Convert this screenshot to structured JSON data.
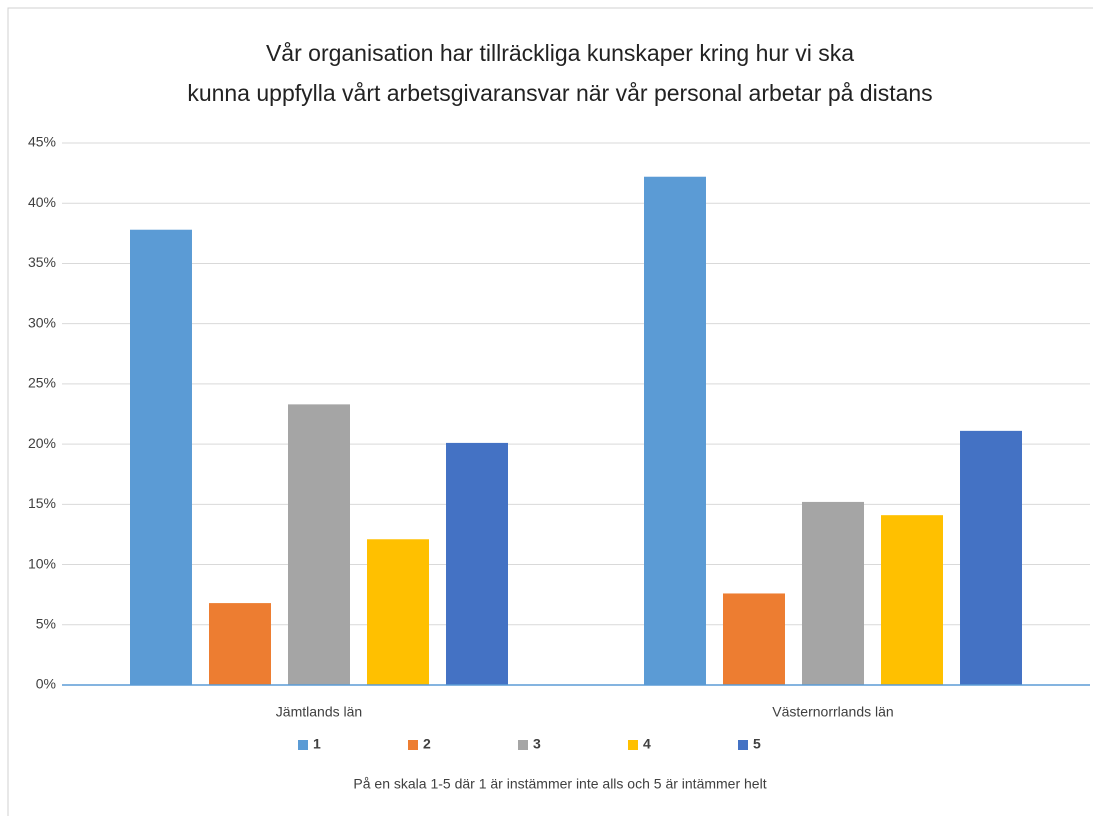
{
  "chart_data": {
    "type": "bar",
    "title": [
      "Vår organisation har tillräckliga kunskaper kring hur vi ska",
      "kunna uppfylla vårt arbetsgivaransvar när vår personal arbetar på distans"
    ],
    "xlabel": "På en skala 1-5 där 1 är instämmer inte alls och 5 är intämmer helt",
    "categories": [
      "Jämtlands län",
      "Västernorrlands län"
    ],
    "series": [
      {
        "name": "1",
        "color": "#5b9bd5",
        "values": [
          37.8,
          42.2
        ]
      },
      {
        "name": "2",
        "color": "#ed7d31",
        "values": [
          6.8,
          7.6
        ]
      },
      {
        "name": "3",
        "color": "#a5a5a5",
        "values": [
          23.3,
          15.2
        ]
      },
      {
        "name": "4",
        "color": "#ffc000",
        "values": [
          12.1,
          14.1
        ]
      },
      {
        "name": "5",
        "color": "#4472c4",
        "values": [
          20.1,
          21.1
        ]
      }
    ],
    "ylim": [
      0,
      45
    ],
    "yticks": [
      {
        "value": 0,
        "label": "0%"
      },
      {
        "value": 5,
        "label": "5%"
      },
      {
        "value": 10,
        "label": "10%"
      },
      {
        "value": 15,
        "label": "15%"
      },
      {
        "value": 20,
        "label": "20%"
      },
      {
        "value": 25,
        "label": "25%"
      },
      {
        "value": 30,
        "label": "30%"
      },
      {
        "value": 35,
        "label": "35%"
      },
      {
        "value": 40,
        "label": "40%"
      },
      {
        "value": 45,
        "label": "45%"
      }
    ],
    "grid": true,
    "legend": "bottom"
  }
}
